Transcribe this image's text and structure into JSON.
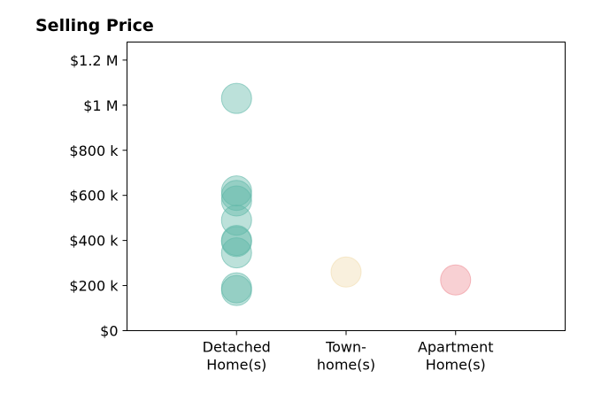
{
  "chart_data": {
    "type": "scatter",
    "title": "Selling Price",
    "xlabel": "",
    "ylabel": "",
    "categories": [
      {
        "lines": [
          "Detached",
          "Home(s)"
        ],
        "color": "#5fb8a8"
      },
      {
        "lines": [
          "Town-",
          "home(s)"
        ],
        "color": "#f1dcae"
      },
      {
        "lines": [
          "Apartment",
          "Home(s)"
        ],
        "color": "#ef8f97"
      }
    ],
    "xlim": [
      -1,
      3
    ],
    "ylim": [
      0,
      1280000
    ],
    "y_ticks": [
      {
        "value": 0,
        "label": "$0"
      },
      {
        "value": 200000,
        "label": "$200 k"
      },
      {
        "value": 400000,
        "label": "$400 k"
      },
      {
        "value": 600000,
        "label": "$600 k"
      },
      {
        "value": 800000,
        "label": "$800 k"
      },
      {
        "value": 1000000,
        "label": "$1 M"
      },
      {
        "value": 1200000,
        "label": "$1.2 M"
      }
    ],
    "grid": false,
    "legend": "none",
    "points": [
      {
        "category": 0,
        "value": 1030000
      },
      {
        "category": 0,
        "value": 620000
      },
      {
        "category": 0,
        "value": 600000
      },
      {
        "category": 0,
        "value": 575000
      },
      {
        "category": 0,
        "value": 490000
      },
      {
        "category": 0,
        "value": 400000
      },
      {
        "category": 0,
        "value": 395000
      },
      {
        "category": 0,
        "value": 345000
      },
      {
        "category": 0,
        "value": 190000
      },
      {
        "category": 0,
        "value": 178000
      },
      {
        "category": 1,
        "value": 260000
      },
      {
        "category": 2,
        "value": 225000
      }
    ]
  }
}
